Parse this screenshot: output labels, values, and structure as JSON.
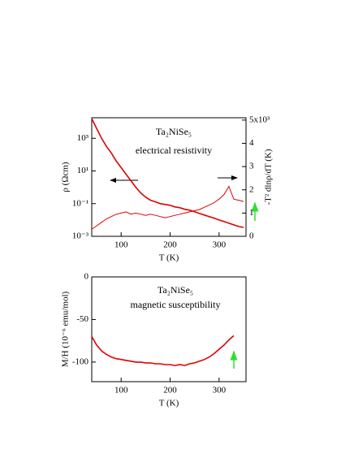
{
  "chart_data": [
    {
      "type": "line",
      "annotations": [
        "Ta₂NiSe₅",
        "electrical resistivity"
      ],
      "x_label": "T (K)",
      "y_label": "ρ (Ωcm)",
      "y2_label": "-T² dlnρ/dT (K)",
      "xlim": [
        40,
        355
      ],
      "xticks": [
        100,
        200,
        300
      ],
      "ylim": [
        0.001,
        18000
      ],
      "y_scale": "log",
      "yticks": [
        {
          "value": 0.001,
          "label": "10⁻³"
        },
        {
          "value": 0.1,
          "label": "10⁻¹"
        },
        {
          "value": 10,
          "label": "10¹"
        },
        {
          "value": 1000,
          "label": "10³"
        }
      ],
      "y2lim": [
        0,
        5100
      ],
      "y2ticks": [
        {
          "value": 0,
          "label": "0"
        },
        {
          "value": 1000,
          "label": "1"
        },
        {
          "value": 2000,
          "label": "2"
        },
        {
          "value": 3000,
          "label": "3"
        },
        {
          "value": 4000,
          "label": "4"
        },
        {
          "value": 5000,
          "label": "5x10³"
        }
      ],
      "x": [
        40,
        50,
        60,
        70,
        80,
        90,
        100,
        110,
        120,
        130,
        140,
        150,
        160,
        170,
        180,
        190,
        200,
        210,
        220,
        230,
        240,
        250,
        260,
        270,
        280,
        290,
        300,
        310,
        320,
        330,
        340,
        350
      ],
      "series": [
        {
          "color": "#e00000",
          "axis": "y",
          "values": [
            15800,
            4000,
            1000,
            316,
            126,
            40,
            16,
            6.3,
            2.5,
            1,
            0.45,
            0.25,
            0.16,
            0.13,
            0.1,
            0.089,
            0.079,
            0.063,
            0.056,
            0.045,
            0.04,
            0.032,
            0.025,
            0.02,
            0.016,
            0.013,
            0.01,
            0.008,
            0.0063,
            0.005,
            0.004,
            0.0035
          ]
        },
        {
          "color": "#e00000",
          "axis": "y2",
          "values": [
            300,
            450,
            600,
            750,
            850,
            950,
            1000,
            1050,
            950,
            1000,
            950,
            900,
            950,
            900,
            850,
            800,
            850,
            900,
            950,
            1000,
            1050,
            1100,
            1150,
            1250,
            1350,
            1450,
            1600,
            1800,
            2150,
            1600,
            1550,
            1500
          ]
        }
      ]
    },
    {
      "type": "line",
      "annotations": [
        "Ta₂NiSe₅",
        "magnetic susceptibility"
      ],
      "x_label": "T (K)",
      "y_label": "M/H (10⁻⁶ emu/mol)",
      "xlim": [
        40,
        355
      ],
      "xticks": [
        100,
        200,
        300
      ],
      "ylim": [
        -123,
        0
      ],
      "yticks": [
        -100,
        -50,
        0
      ],
      "x": [
        40,
        50,
        60,
        70,
        80,
        90,
        100,
        110,
        120,
        130,
        140,
        150,
        160,
        170,
        180,
        190,
        200,
        210,
        220,
        230,
        240,
        250,
        260,
        270,
        280,
        290,
        300,
        310,
        320,
        330
      ],
      "series": [
        {
          "color": "#e00000",
          "axis": "y",
          "values": [
            -70,
            -80,
            -87,
            -91,
            -94,
            -96,
            -97,
            -98,
            -99,
            -100,
            -100,
            -101,
            -101,
            -102,
            -102,
            -103,
            -103,
            -104,
            -103,
            -104,
            -102,
            -101,
            -99,
            -97,
            -94,
            -90,
            -85,
            -80,
            -74,
            -69
          ]
        }
      ]
    }
  ]
}
